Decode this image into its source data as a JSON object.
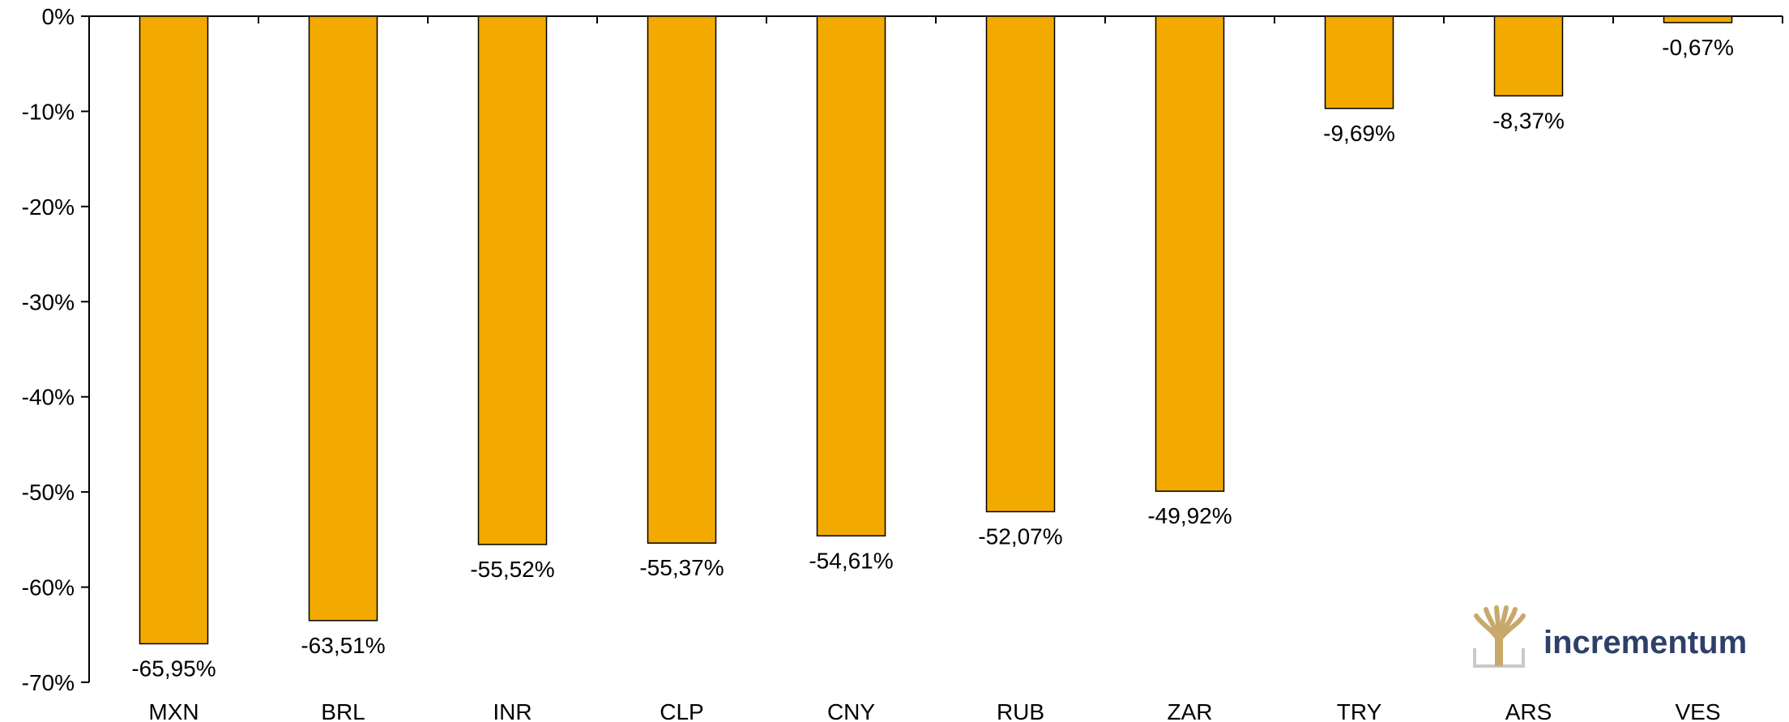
{
  "chart_data": {
    "type": "bar",
    "categories": [
      "MXN",
      "BRL",
      "INR",
      "CLP",
      "CNY",
      "RUB",
      "ZAR",
      "TRY",
      "ARS",
      "VES"
    ],
    "values": [
      -65.95,
      -63.51,
      -55.52,
      -55.37,
      -54.61,
      -52.07,
      -49.92,
      -9.69,
      -8.37,
      -0.67
    ],
    "data_labels": [
      "-65,95%",
      "-63,51%",
      "-55,52%",
      "-55,37%",
      "-54,61%",
      "-52,07%",
      "-49,92%",
      "-9,69%",
      "-8,37%",
      "-0,67%"
    ],
    "y_ticks": [
      0,
      -10,
      -20,
      -30,
      -40,
      -50,
      -60,
      -70
    ],
    "y_tick_labels": [
      "0%",
      "-10%",
      "-20%",
      "-30%",
      "-40%",
      "-50%",
      "-60%",
      "-70%"
    ],
    "ylim": [
      -70,
      0
    ],
    "title": "",
    "xlabel": "",
    "ylabel": "",
    "grid": false,
    "bar_color": "#F2A900",
    "bar_stroke": "#000000"
  },
  "logo": {
    "text": "incrementum",
    "text_color": "#2E3F68",
    "mark_color": "#C8A96B",
    "icon": "tree-logo-icon"
  }
}
